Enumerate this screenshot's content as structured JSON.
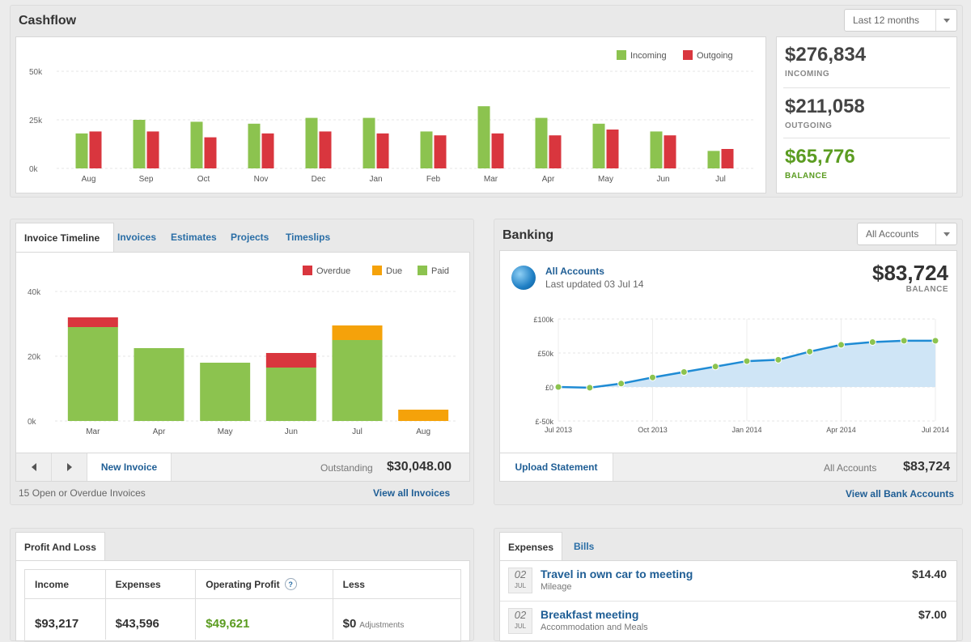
{
  "cashflow": {
    "title": "Cashflow",
    "range_select": "Last 12 months",
    "legend": [
      "Incoming",
      "Outgoing"
    ],
    "colors": {
      "incoming": "#8cc34f",
      "outgoing": "#d9363e"
    },
    "totals": [
      {
        "value": "$276,834",
        "label": "INCOMING",
        "color": "#444444"
      },
      {
        "value": "$211,058",
        "label": "OUTGOING",
        "color": "#444444"
      },
      {
        "value": "$65,776",
        "label": "BALANCE",
        "color": "#5b9c21"
      }
    ]
  },
  "invoices": {
    "tabs": [
      "Invoice Timeline",
      "Invoices",
      "Estimates",
      "Projects",
      "Timeslips"
    ],
    "legend": [
      "Overdue",
      "Due",
      "Paid"
    ],
    "colors": {
      "overdue": "#d9363e",
      "due": "#f5a20a",
      "paid": "#8cc34f"
    },
    "new_invoice": "New Invoice",
    "outstanding_label": "Outstanding",
    "outstanding_value": "$30,048.00",
    "open_count": "15",
    "open_text": "Open or Overdue Invoices",
    "view_all": "View all Invoices"
  },
  "banking": {
    "title": "Banking",
    "account_select": "All Accounts",
    "account_name": "All Accounts",
    "last_updated": "Last updated 03 Jul 14",
    "balance": "$83,724",
    "balance_label": "BALANCE",
    "upload": "Upload Statement",
    "footer_label": "All Accounts",
    "footer_value": "$83,724",
    "view_all": "View all Bank Accounts"
  },
  "pnl": {
    "tab": "Profit And Loss",
    "columns": [
      "Income",
      "Expenses",
      "Operating Profit",
      "Less"
    ],
    "values": [
      "$93,217",
      "$43,596",
      "$49,621",
      "$0"
    ],
    "less_note": "Adjustments"
  },
  "expenses": {
    "tabs": [
      "Expenses",
      "Bills"
    ],
    "items": [
      {
        "day": "02",
        "month": "JUL",
        "title": "Travel in own car to meeting",
        "sub": "Mileage",
        "amount": "$14.40"
      },
      {
        "day": "02",
        "month": "JUL",
        "title": "Breakfast meeting",
        "sub": "Accommodation and Meals",
        "amount": "$7.00"
      }
    ]
  },
  "chart_data": [
    {
      "type": "bar",
      "categories": [
        "Aug",
        "Sep",
        "Oct",
        "Nov",
        "Dec",
        "Jan",
        "Feb",
        "Mar",
        "Apr",
        "May",
        "Jun",
        "Jul"
      ],
      "series": [
        {
          "name": "Incoming",
          "values": [
            18,
            25,
            24,
            23,
            26,
            26,
            19,
            32,
            26,
            23,
            19,
            9
          ]
        },
        {
          "name": "Outgoing",
          "values": [
            19,
            19,
            16,
            18,
            19,
            18,
            17,
            18,
            17,
            20,
            17,
            10
          ]
        }
      ],
      "yticks": [
        "0k",
        "25k",
        "50k"
      ],
      "ylim": [
        0,
        50
      ]
    },
    {
      "type": "bar",
      "stacked": true,
      "categories": [
        "Mar",
        "Apr",
        "May",
        "Jun",
        "Jul",
        "Aug"
      ],
      "series": [
        {
          "name": "Paid",
          "values": [
            29,
            22.5,
            18,
            16.5,
            25,
            0
          ]
        },
        {
          "name": "Due",
          "values": [
            0,
            0,
            0,
            0,
            4.5,
            3.5
          ]
        },
        {
          "name": "Overdue",
          "values": [
            3,
            0,
            0,
            4.5,
            0,
            0
          ]
        }
      ],
      "yticks": [
        "0k",
        "20k",
        "40k"
      ],
      "ylim": [
        0,
        40
      ]
    },
    {
      "type": "area",
      "x": [
        "Jul 2013",
        "Aug 2013",
        "Sep 2013",
        "Oct 2013",
        "Nov 2013",
        "Dec 2013",
        "Jan 2014",
        "Feb 2014",
        "Mar 2014",
        "Apr 2014",
        "May 2014",
        "Jun 2014",
        "Jul 2014"
      ],
      "values": [
        0,
        -1,
        5,
        14,
        22,
        30,
        38,
        40,
        52,
        62,
        66,
        68,
        68
      ],
      "xticks": [
        "Jul 2013",
        "Oct 2013",
        "Jan 2014",
        "Apr 2014",
        "Jul 2014"
      ],
      "yticks": [
        "£-50k",
        "£0",
        "£50k",
        "£100k"
      ],
      "ylim": [
        -50,
        100
      ],
      "color": "#1f8bd4"
    }
  ]
}
